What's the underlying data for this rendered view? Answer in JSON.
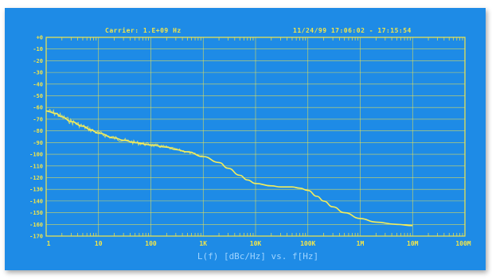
{
  "header": {
    "carrier": "Carrier: 1.E+09 Hz",
    "date_time": "11/24/99   17:06:02 - 17:15:54"
  },
  "colors": {
    "background": "#1e8be6",
    "grid": "#f2e64a",
    "trace": "#f5ee5a",
    "xlabel": "#9fd4ff"
  },
  "chart_data": {
    "type": "line",
    "title": "",
    "xlabel": "L(f) [dBc/Hz] vs. f[Hz]",
    "ylabel": "",
    "x_scale": "log",
    "xlim": [
      1,
      100000000
    ],
    "ylim": [
      -170,
      0
    ],
    "grid": true,
    "x_ticks": [
      "1",
      "10",
      "100",
      "1K",
      "10K",
      "100K",
      "1M",
      "10M"
    ],
    "x_tick_values": [
      1,
      10,
      100,
      1000,
      10000,
      100000,
      1000000,
      10000000
    ],
    "y_ticks": [
      "+0",
      "-10",
      "-20",
      "-30",
      "-40",
      "-50",
      "-60",
      "-70",
      "-80",
      "-90",
      "-100",
      "-110",
      "-120",
      "-130",
      "-140",
      "-150",
      "-160",
      "-170"
    ],
    "y_tick_values": [
      0,
      -10,
      -20,
      -30,
      -40,
      -50,
      -60,
      -70,
      -80,
      -90,
      -100,
      -110,
      -120,
      -130,
      -140,
      -150,
      -160,
      -170
    ],
    "series": [
      {
        "x": [
          1,
          1.5,
          2,
          3,
          5,
          7,
          10,
          20,
          30,
          50,
          100,
          200,
          300,
          500,
          1000,
          2000,
          3000,
          5000,
          7000,
          10000,
          20000,
          30000,
          50000,
          70000,
          100000,
          150000,
          200000,
          300000,
          500000,
          1000000,
          2000000,
          5000000,
          10000000
        ],
        "y": [
          -63,
          -65,
          -68,
          -72,
          -76,
          -79,
          -82,
          -86,
          -88,
          -90,
          -92,
          -94,
          -96,
          -98,
          -102,
          -107,
          -112,
          -118,
          -122,
          -125,
          -127,
          -128,
          -128,
          -129,
          -131,
          -136,
          -140,
          -145,
          -150,
          -155,
          -158,
          -160,
          -161
        ]
      }
    ]
  }
}
